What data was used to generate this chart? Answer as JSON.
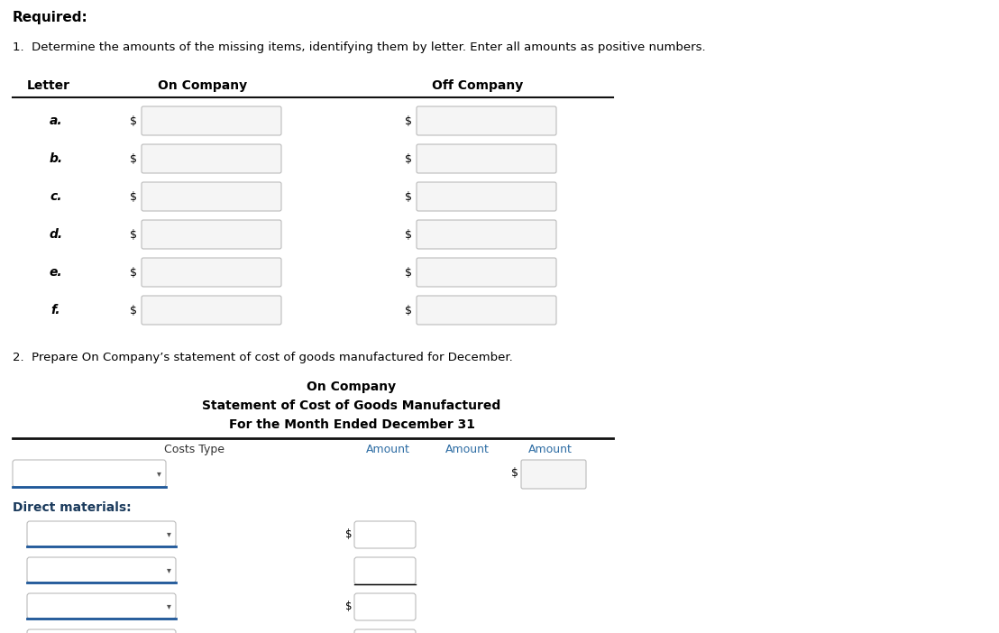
{
  "title_required": "Required:",
  "instruction1": "1.  Determine the amounts of the missing items, identifying them by letter. Enter all amounts as positive numbers.",
  "col_letter": "Letter",
  "col_on_company": "On Company",
  "col_off_company": "Off Company",
  "letters": [
    "a.",
    "b.",
    "c.",
    "d.",
    "e.",
    "f."
  ],
  "section2_intro": "2.  Prepare On Company’s statement of cost of goods manufactured for December.",
  "stmt_title1": "On Company",
  "stmt_title2": "Statement of Cost of Goods Manufactured",
  "stmt_title3": "For the Month Ended December 31",
  "col_costs_type": "Costs Type",
  "col_amount1": "Amount",
  "col_amount2": "Amount",
  "col_amount3": "Amount",
  "direct_materials": "Direct materials:",
  "bg_color": "#ffffff",
  "text_color": "#000000",
  "input_box_border": "#bbbbbb",
  "input_box_face": "#ffffff",
  "blue_underline": "#1e5799",
  "teal_text": "#2e6da4",
  "header_line_color": "#111111",
  "dropdown_arrow_color": "#555555",
  "section2_title_color": "#1a3a5c",
  "gray_box_face": "#f5f5f5",
  "gray_box_border": "#bbbbbb"
}
